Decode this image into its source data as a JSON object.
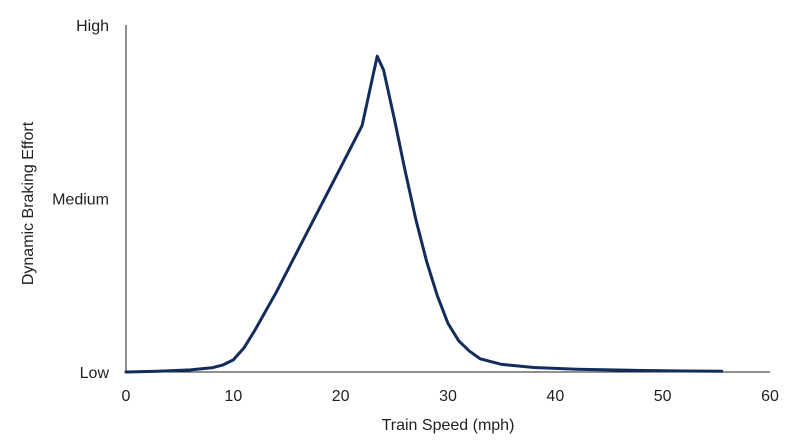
{
  "chart_data": {
    "type": "line",
    "xlabel": "Train Speed (mph)",
    "ylabel": "Dynamic Braking Effort",
    "xlim": [
      0,
      60
    ],
    "ylim": [
      0,
      100
    ],
    "x_ticks": [
      0,
      10,
      20,
      30,
      40,
      50,
      60
    ],
    "y_ticks": [
      {
        "label": "Low",
        "value": 0
      },
      {
        "label": "Medium",
        "value": 50
      },
      {
        "label": "High",
        "value": 100
      }
    ],
    "grid": false,
    "line_color": "#132c5b",
    "series": [
      {
        "x": [
          0,
          3,
          6,
          8,
          9,
          10,
          11,
          12,
          14,
          16,
          18,
          20,
          22,
          23.4,
          24,
          25,
          26,
          27,
          28,
          29,
          30,
          31,
          32,
          33,
          35,
          38,
          42,
          47,
          52,
          55.5
        ],
        "y": [
          0,
          0.2,
          0.6,
          1.2,
          2,
          3.5,
          7,
          12,
          23,
          35,
          47,
          59,
          71,
          91,
          87,
          73,
          58,
          44,
          32,
          22,
          14,
          9,
          6,
          3.8,
          2.2,
          1.3,
          0.8,
          0.5,
          0.3,
          0.2
        ]
      }
    ]
  }
}
